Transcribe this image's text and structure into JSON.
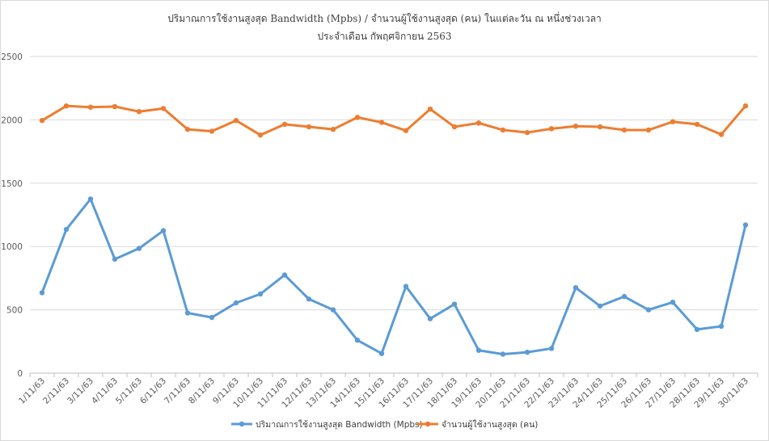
{
  "chart_data": {
    "type": "line",
    "title": "ปริมาณการใช้งานสูงสุด Bandwidth (Mpbs) / จำนวนผู้ใช้งานสูงสุด (คน) ในแต่ละวัน ณ หนึ่งช่วงเวลา",
    "subtitle": "ประจำเดือน กัพฤศจิกายน 2563",
    "xlabel": "",
    "ylabel": "",
    "ylim": [
      0,
      2500
    ],
    "yticks": [
      0,
      500,
      1000,
      1500,
      2000,
      2500
    ],
    "grid": true,
    "legend_position": "bottom",
    "categories": [
      "1/11/63",
      "2/11/63",
      "3/11/63",
      "4/11/63",
      "5/11/63",
      "6/11/63",
      "7/11/63",
      "8/11/63",
      "9/11/63",
      "10/11/63",
      "11/11/63",
      "12/11/63",
      "13/11/63",
      "14/11/63",
      "15/11/63",
      "16/11/63",
      "17/11/63",
      "18/11/63",
      "19/11/63",
      "20/11/63",
      "21/11/63",
      "22/11/63",
      "23/11/63",
      "24/11/63",
      "25/11/63",
      "26/11/63",
      "27/11/63",
      "28/11/63",
      "29/11/63",
      "30/11/63"
    ],
    "series": [
      {
        "name": "ปริมาณการใช้งานสูงสุด Bandwidth (Mpbs)",
        "color": "#5B9BD5",
        "values": [
          635,
          1135,
          1375,
          900,
          985,
          1125,
          475,
          440,
          555,
          625,
          775,
          585,
          500,
          260,
          155,
          685,
          430,
          545,
          180,
          150,
          165,
          195,
          675,
          530,
          605,
          500,
          560,
          345,
          370,
          1170
        ]
      },
      {
        "name": "จำนวนผู้ใช้งานสูงสุด (คน)",
        "color": "#ED7D31",
        "values": [
          1995,
          2110,
          2100,
          2105,
          2065,
          2090,
          1925,
          1910,
          1995,
          1880,
          1965,
          1945,
          1925,
          2020,
          1980,
          1915,
          2085,
          1945,
          1975,
          1920,
          1900,
          1930,
          1950,
          1945,
          1920,
          1920,
          1985,
          1965,
          1885,
          2110
        ]
      }
    ]
  }
}
